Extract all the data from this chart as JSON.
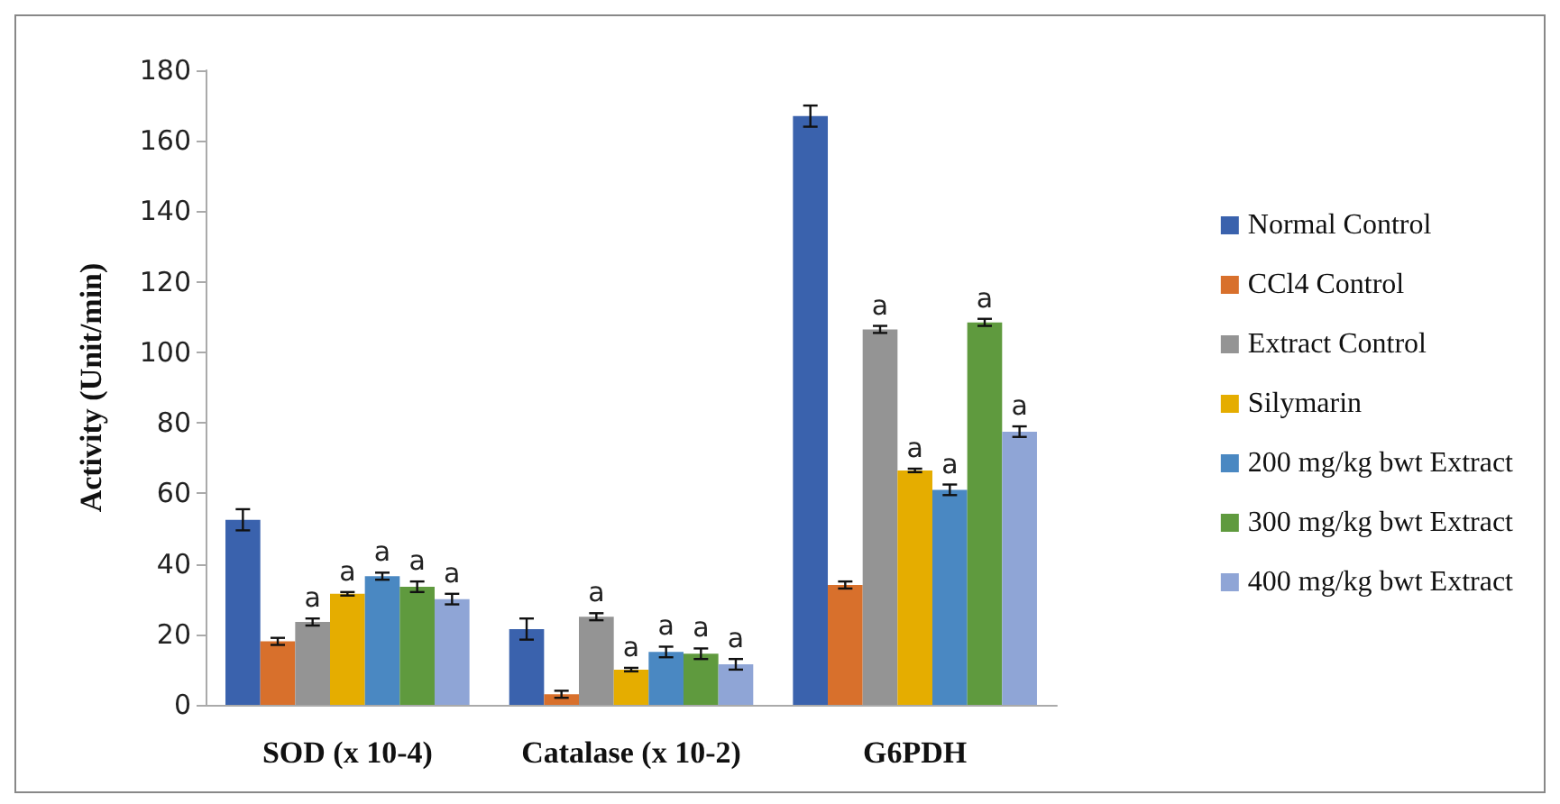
{
  "chart_data": {
    "type": "bar",
    "ylabel": "Activity (Unit/min)",
    "categories": [
      "SOD (x 10-4)",
      "Catalase (x 10-2)",
      "G6PDH"
    ],
    "ylim": [
      0,
      180
    ],
    "yticks": [
      0,
      20,
      40,
      60,
      80,
      100,
      120,
      140,
      160,
      180
    ],
    "grid": false,
    "legend": "right",
    "series": [
      {
        "name": "Normal Control",
        "color": "#3a62ad",
        "values": [
          52.5,
          21.5,
          167
        ],
        "errors": [
          3,
          3,
          3
        ],
        "value_labels": [
          null,
          null,
          null
        ]
      },
      {
        "name": "CCl4 Control",
        "color": "#d8702c",
        "values": [
          18,
          3,
          34
        ],
        "errors": [
          1,
          1,
          1
        ],
        "value_labels": [
          null,
          null,
          null
        ]
      },
      {
        "name": "Extract Control",
        "color": "#949494",
        "values": [
          23.5,
          25,
          106.5
        ],
        "errors": [
          1,
          1,
          1
        ],
        "value_labels": [
          "a",
          "a",
          "a"
        ]
      },
      {
        "name": "Silymarin",
        "color": "#e5ad00",
        "values": [
          31.5,
          10,
          66.5
        ],
        "errors": [
          0.5,
          0.5,
          0.5
        ],
        "value_labels": [
          "a",
          "a",
          "a"
        ]
      },
      {
        "name": "200 mg/kg bwt Extract",
        "color": "#4a88c2",
        "values": [
          36.5,
          15,
          61
        ],
        "errors": [
          1,
          1.5,
          1.5
        ],
        "value_labels": [
          "a",
          "a",
          "a"
        ]
      },
      {
        "name": "300 mg/kg bwt Extract",
        "color": "#5f9a3e",
        "values": [
          33.5,
          14.5,
          108.5
        ],
        "errors": [
          1.5,
          1.5,
          1
        ],
        "value_labels": [
          "a",
          "a",
          "a"
        ]
      },
      {
        "name": "400 mg/kg bwt Extract",
        "color": "#8fa5d6",
        "values": [
          30,
          11.5,
          77.5
        ],
        "errors": [
          1.5,
          1.5,
          1.5
        ],
        "value_labels": [
          "a",
          "a",
          "a"
        ]
      }
    ]
  }
}
